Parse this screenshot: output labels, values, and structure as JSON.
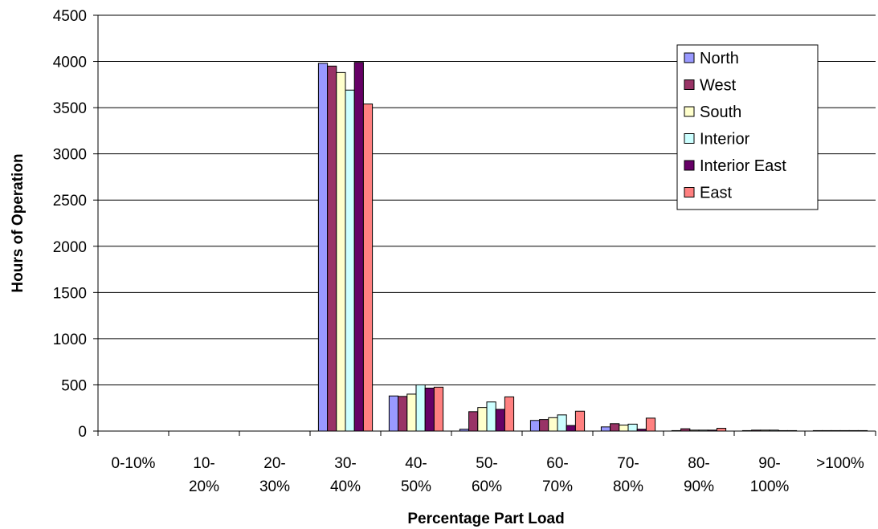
{
  "chart_data": {
    "type": "bar",
    "title": "",
    "xlabel": "Percentage Part Load",
    "ylabel": "Hours of Operation",
    "ylim": [
      0,
      4500
    ],
    "yticks": [
      0,
      500,
      1000,
      1500,
      2000,
      2500,
      3000,
      3500,
      4000,
      4500
    ],
    "grid": true,
    "legend_position": "top-right",
    "categories": [
      [
        "0-10%"
      ],
      [
        "10-",
        "20%"
      ],
      [
        "20-",
        "30%"
      ],
      [
        "30-",
        "40%"
      ],
      [
        "40-",
        "50%"
      ],
      [
        "50-",
        "60%"
      ],
      [
        "60-",
        "70%"
      ],
      [
        "70-",
        "80%"
      ],
      [
        "80-",
        "90%"
      ],
      [
        "90-",
        "100%"
      ],
      [
        ">100%"
      ]
    ],
    "series": [
      {
        "name": "North",
        "color": "#9999ff",
        "values": [
          0,
          0,
          0,
          3980,
          380,
          20,
          115,
          45,
          5,
          5,
          5
        ]
      },
      {
        "name": "West",
        "color": "#993366",
        "values": [
          0,
          0,
          0,
          3950,
          375,
          210,
          125,
          80,
          25,
          10,
          5
        ]
      },
      {
        "name": "South",
        "color": "#ffffcc",
        "values": [
          0,
          0,
          0,
          3880,
          400,
          255,
          145,
          65,
          10,
          10,
          5
        ]
      },
      {
        "name": "Interior",
        "color": "#ccffff",
        "values": [
          0,
          0,
          0,
          3690,
          500,
          315,
          175,
          75,
          10,
          10,
          5
        ]
      },
      {
        "name": "Interior East",
        "color": "#660066",
        "values": [
          0,
          0,
          0,
          3990,
          465,
          235,
          60,
          20,
          10,
          5,
          5
        ]
      },
      {
        "name": "East",
        "color": "#ff8080",
        "values": [
          0,
          0,
          0,
          3540,
          475,
          370,
          215,
          140,
          30,
          5,
          5
        ]
      }
    ]
  }
}
